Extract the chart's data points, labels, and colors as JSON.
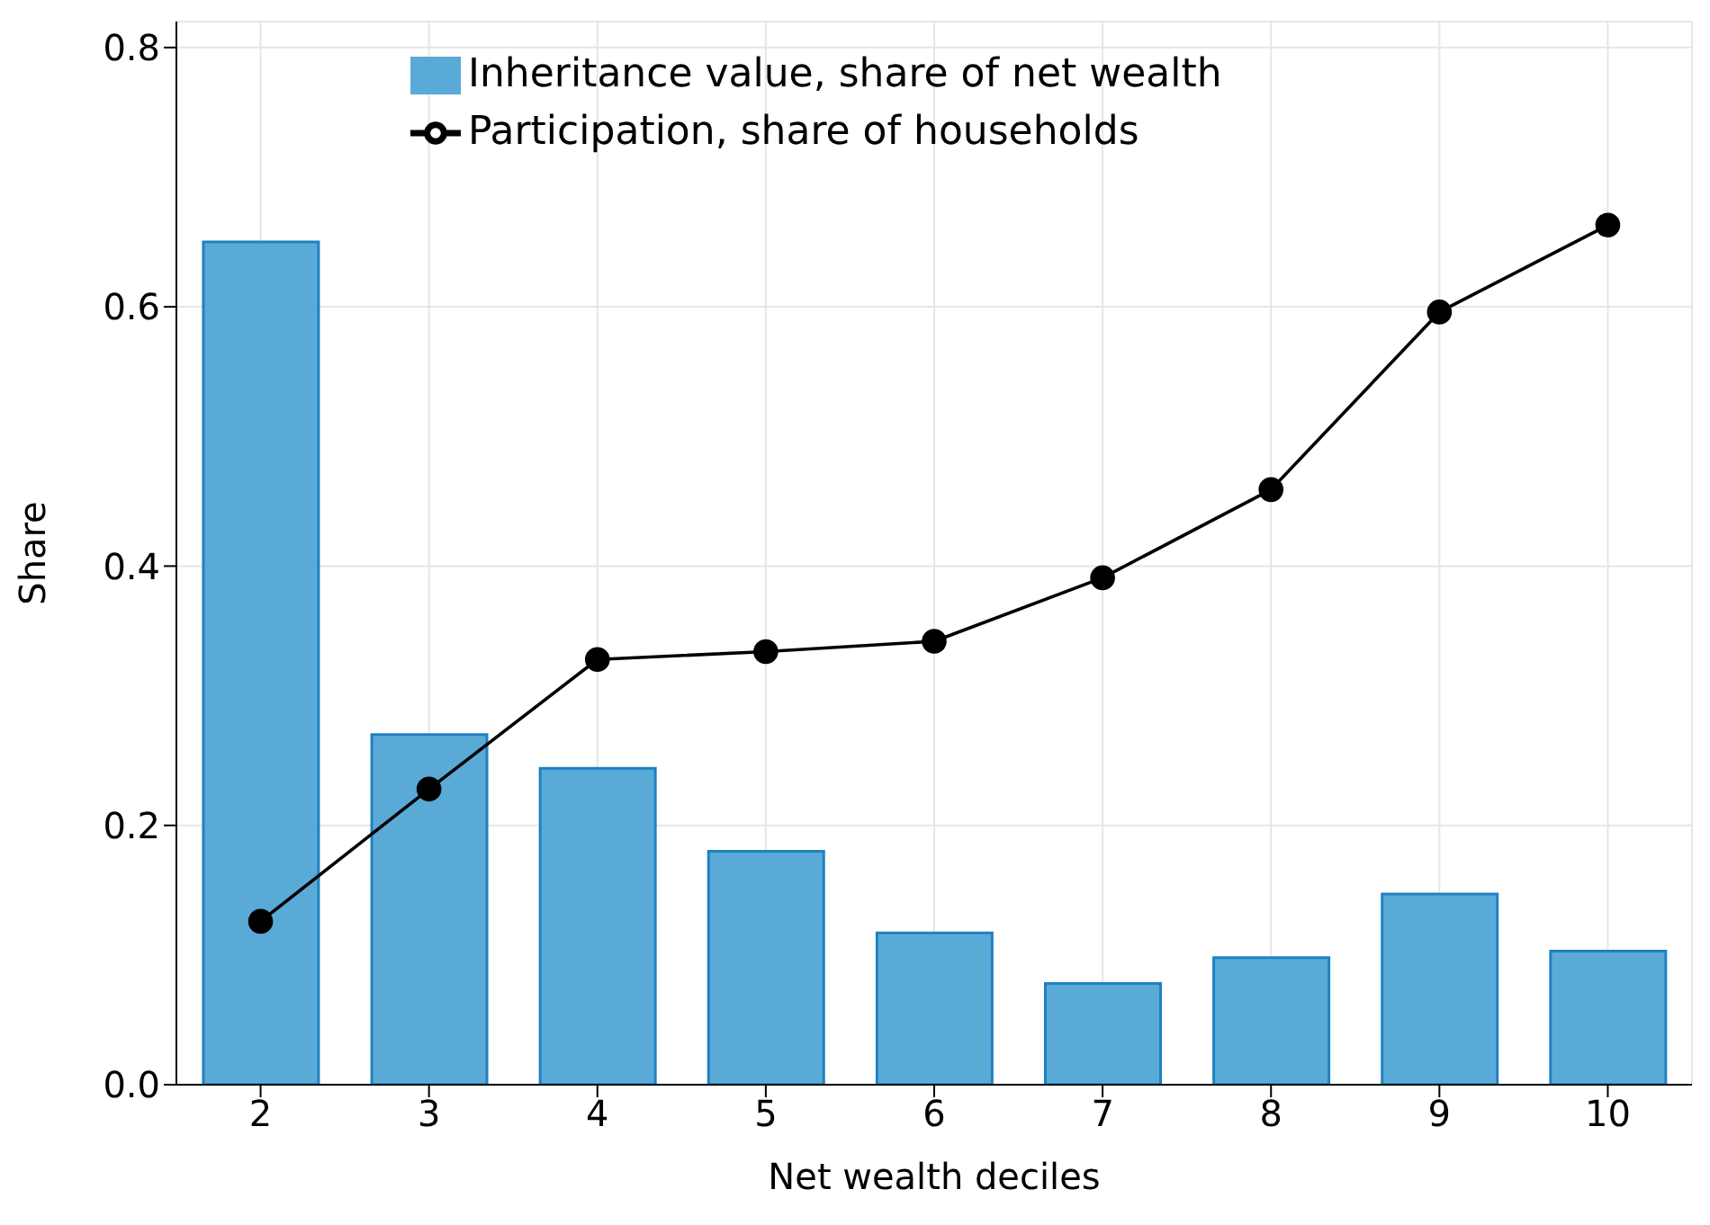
{
  "chart_data": {
    "type": "bar",
    "xlabel": "Net wealth deciles",
    "ylabel": "Share",
    "categories": [
      "2",
      "3",
      "4",
      "5",
      "6",
      "7",
      "8",
      "9",
      "10"
    ],
    "series": [
      {
        "name": "Inheritance value, share of net wealth",
        "color": "#5aaad8",
        "values": [
          0.65,
          0.27,
          0.244,
          0.18,
          0.117,
          0.078,
          0.098,
          0.147,
          0.103
        ]
      },
      {
        "name": "Participation, share of households",
        "type": "line",
        "color": "#000000",
        "values": [
          0.126,
          0.228,
          0.328,
          0.334,
          0.342,
          0.391,
          0.459,
          0.596,
          0.663
        ]
      }
    ],
    "ylim": [
      0,
      0.82
    ],
    "yticks": [
      {
        "value": 0,
        "label": "0.0"
      },
      0.2,
      0.4,
      0.6,
      0.8
    ],
    "grid": true,
    "legend": "top",
    "marker": "circle",
    "line_style": "solid"
  }
}
